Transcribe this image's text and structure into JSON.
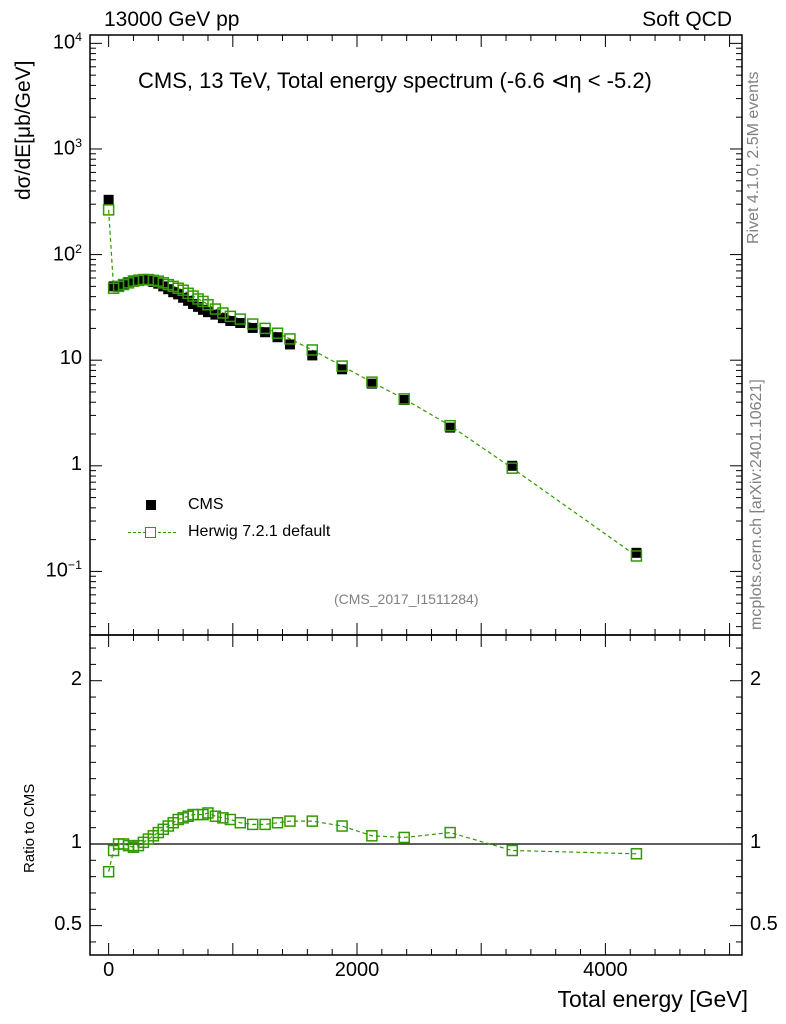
{
  "header": {
    "left": "13000 GeV pp",
    "right": "Soft QCD",
    "plot_title": "CMS, 13 TeV, Total energy spectrum (-6.6 ⊲η < -5.2)",
    "analysis_id": "(CMS_2017_I1511284)"
  },
  "side_labels": {
    "rivet": "Rivet 4.1.0,  2.5M events",
    "mcplots": "mcplots.cern.ch [arXiv:2401.10621]"
  },
  "legend": {
    "data_label": "CMS",
    "mc_label": "Herwig 7.2.1 default"
  },
  "colors": {
    "data": "#000000",
    "mc": "#339900",
    "grey_text": "#808080"
  },
  "chart_data": [
    {
      "type": "scatter",
      "scale": "log",
      "ylabel": "dσ/dE[μb/GeV]",
      "xlim": [
        -150,
        5100
      ],
      "ylim": [
        0.025,
        12000
      ],
      "yticks": [
        {
          "value": 10000,
          "label": "10",
          "sup": "4"
        },
        {
          "value": 1000,
          "label": "10",
          "sup": "3"
        },
        {
          "value": 100,
          "label": "10",
          "sup": "2"
        },
        {
          "value": 10,
          "label": "10",
          "sup": ""
        },
        {
          "value": 1,
          "label": "1",
          "sup": ""
        },
        {
          "value": 0.1,
          "label": "10",
          "sup": "−1"
        }
      ],
      "series": [
        {
          "name": "CMS",
          "x": [
            0,
            40,
            80,
            120,
            160,
            200,
            240,
            280,
            320,
            360,
            400,
            440,
            480,
            520,
            560,
            600,
            640,
            680,
            720,
            760,
            800,
            860,
            920,
            980,
            1060,
            1160,
            1260,
            1360,
            1460,
            1640,
            1880,
            2120,
            2380,
            2750,
            3250,
            4250
          ],
          "values": [
            330,
            50,
            50,
            52,
            55,
            57,
            58,
            58,
            57,
            55,
            53,
            50,
            47,
            44,
            42,
            39,
            36.5,
            34,
            32,
            30,
            28.5,
            27,
            25,
            23.5,
            22.5,
            20.2,
            18.4,
            16.5,
            14.1,
            11.1,
            8.2,
            6.0,
            4.2,
            2.3,
            1.0,
            0.15
          ]
        },
        {
          "name": "Herwig 7.2.1 default",
          "x": [
            0,
            40,
            80,
            120,
            160,
            200,
            240,
            280,
            320,
            360,
            400,
            440,
            480,
            520,
            560,
            600,
            640,
            680,
            720,
            760,
            800,
            860,
            920,
            980,
            1060,
            1160,
            1260,
            1360,
            1460,
            1640,
            1880,
            2120,
            2380,
            2750,
            3250,
            4250
          ],
          "values": [
            265,
            48,
            50,
            52,
            54,
            56,
            57,
            58,
            58,
            57,
            56,
            54,
            52,
            50,
            48,
            46,
            43,
            40.5,
            38,
            36,
            33.5,
            30.5,
            28,
            26,
            24.5,
            22,
            20,
            18,
            15.9,
            12.5,
            8.8,
            6.2,
            4.3,
            2.4,
            0.95,
            0.14
          ]
        }
      ]
    },
    {
      "type": "line",
      "ylabel": "Ratio to CMS",
      "xlabel": "Total energy [GeV]",
      "xlim": [
        -150,
        5100
      ],
      "ylim": [
        0.32,
        2.28
      ],
      "xticks": [
        {
          "value": 0,
          "label": "0"
        },
        {
          "value": 2000,
          "label": "2000"
        },
        {
          "value": 4000,
          "label": "4000"
        }
      ],
      "yticks": [
        {
          "value": 2,
          "label": "2"
        },
        {
          "value": 1,
          "label": "1"
        },
        {
          "value": 0.5,
          "label": "0.5"
        }
      ],
      "reference_line": 1,
      "series": [
        {
          "name": "Herwig 7.2.1 default / CMS",
          "x": [
            0,
            40,
            80,
            120,
            160,
            200,
            240,
            280,
            320,
            360,
            400,
            440,
            480,
            520,
            560,
            600,
            640,
            680,
            720,
            760,
            800,
            860,
            920,
            980,
            1060,
            1160,
            1260,
            1360,
            1460,
            1640,
            1880,
            2120,
            2380,
            2750,
            3250,
            4250
          ],
          "values": [
            0.83,
            0.96,
            1.0,
            1.0,
            0.99,
            0.98,
            0.99,
            1.01,
            1.03,
            1.05,
            1.07,
            1.09,
            1.11,
            1.13,
            1.15,
            1.16,
            1.17,
            1.18,
            1.18,
            1.18,
            1.19,
            1.17,
            1.16,
            1.15,
            1.13,
            1.12,
            1.12,
            1.13,
            1.14,
            1.14,
            1.11,
            1.05,
            1.04,
            1.07,
            0.96,
            0.94
          ]
        }
      ]
    }
  ]
}
